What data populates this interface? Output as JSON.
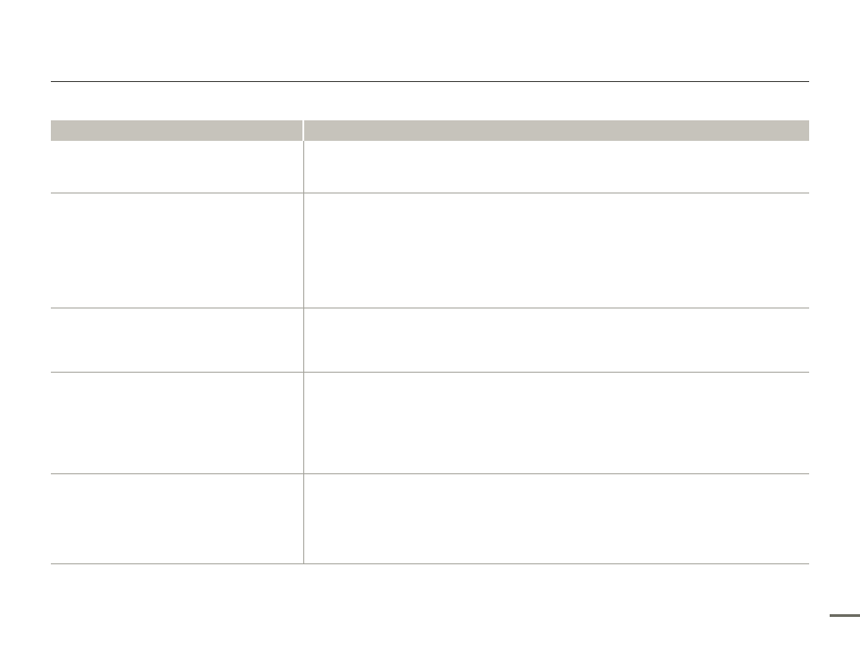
{
  "colors": {
    "header_fill": "#c6c3bb",
    "rule": "#a3a29a",
    "top_rule": "#3a3a36",
    "page_marker": "#6b6b61"
  },
  "table": {
    "header": [
      "",
      ""
    ],
    "rows": [
      [
        "",
        ""
      ],
      [
        "",
        ""
      ],
      [
        "",
        ""
      ],
      [
        "",
        ""
      ],
      [
        "",
        ""
      ]
    ]
  }
}
